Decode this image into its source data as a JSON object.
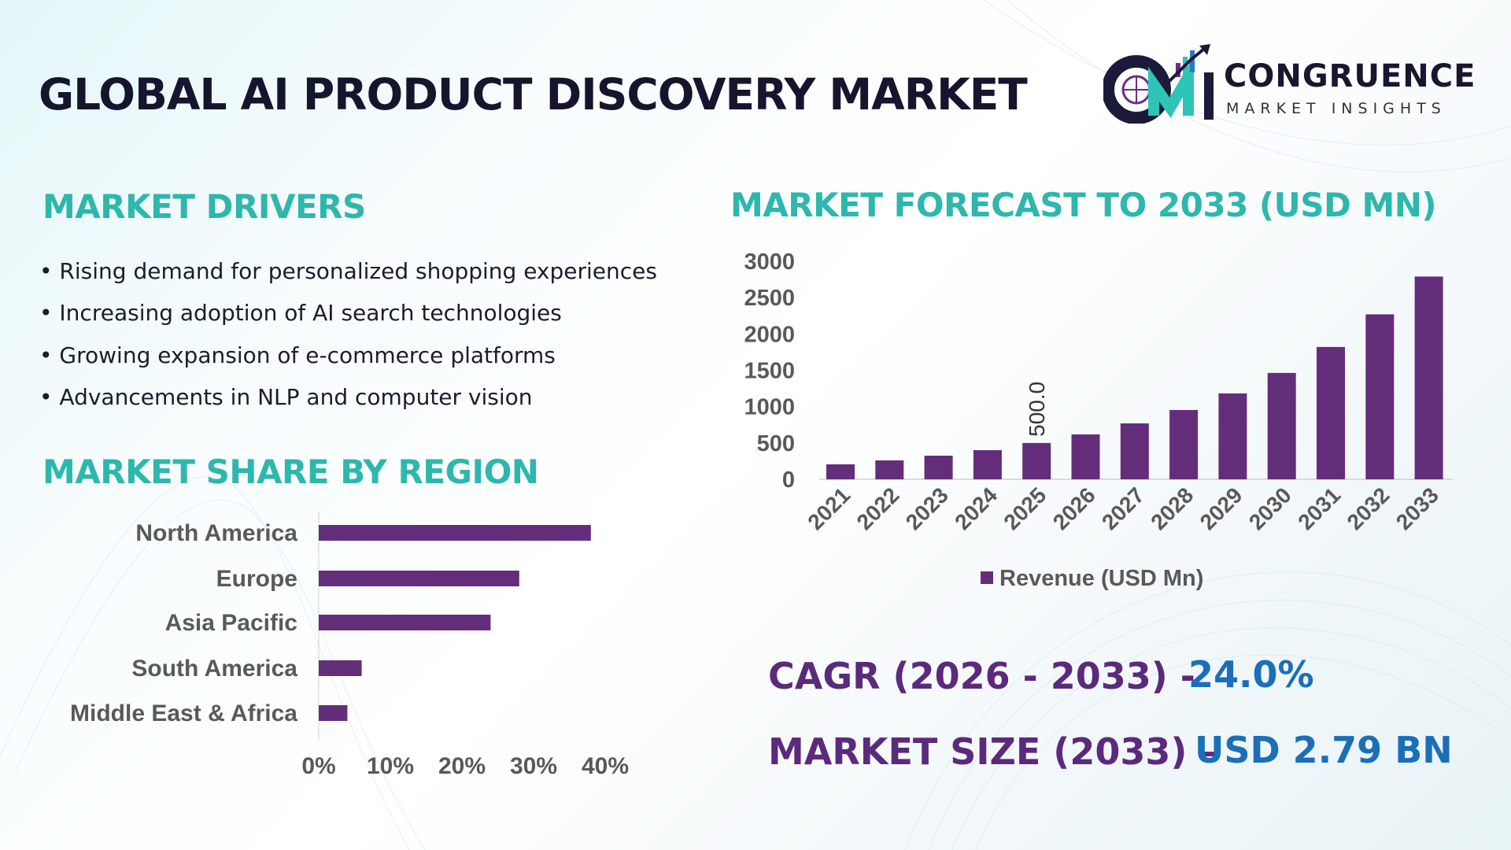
{
  "header": {
    "title": "GLOBAL AI PRODUCT DISCOVERY MARKET"
  },
  "logo": {
    "name": "CONGRUENCE",
    "subtitle": "MARKET INSIGHTS",
    "colors": [
      "#1c1a3a",
      "#2ec4b6",
      "#1f7fc4",
      "#6a2c8a"
    ]
  },
  "drivers": {
    "heading": "MARKET DRIVERS",
    "items": [
      "Rising demand for personalized shopping experiences",
      "Increasing adoption of AI search technologies",
      "Growing expansion of e-commerce platforms",
      "Advancements in NLP and computer vision"
    ]
  },
  "region": {
    "heading": "MARKET SHARE BY REGION"
  },
  "forecast": {
    "heading": "MARKET FORECAST TO 2033 (USD MN)"
  },
  "kpis": {
    "cagr_label": "CAGR (2026 - 2033) -",
    "cagr_value": "24.0%",
    "size_label": "MARKET SIZE (2033) –",
    "size_value": "USD 2.79 BN"
  },
  "colors": {
    "heading": "#2eb7ac",
    "bar": "#642d7a",
    "kpi_label": "#5b2a7c",
    "kpi_value": "#1b6fb8",
    "title": "#15152e"
  },
  "chart_data": [
    {
      "type": "bar",
      "orientation": "vertical",
      "categories": [
        "2021",
        "2022",
        "2023",
        "2024",
        "2025",
        "2026",
        "2027",
        "2028",
        "2029",
        "2030",
        "2031",
        "2032",
        "2033"
      ],
      "series": [
        {
          "name": "Revenue (USD Mn)",
          "values": [
            206,
            260,
            325,
            401,
            500,
            618,
            770,
            954,
            1182,
            1464,
            1821,
            2270,
            2790
          ]
        }
      ],
      "yticks": [
        "0",
        "500",
        "1000",
        "1500",
        "2000",
        "2500",
        "3000"
      ],
      "ylim": [
        0,
        3000
      ],
      "data_labels": [
        {
          "category": "2025",
          "text": "500.0"
        }
      ],
      "legend": "bottom",
      "grid": false
    },
    {
      "type": "bar",
      "orientation": "horizontal",
      "categories": [
        "North America",
        "Europe",
        "Asia Pacific",
        "South America",
        "Middle East & Africa"
      ],
      "values": [
        38,
        28,
        24,
        6,
        4
      ],
      "xticks": [
        "0%",
        "10%",
        "20%",
        "30%",
        "40%"
      ],
      "xlim": [
        0,
        40
      ],
      "grid": false
    }
  ]
}
